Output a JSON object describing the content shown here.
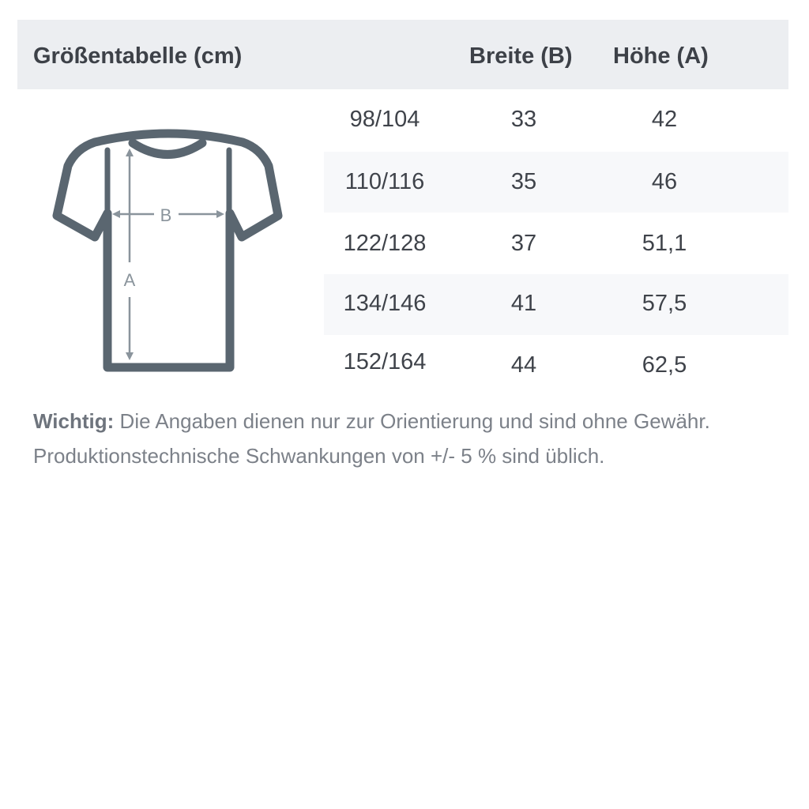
{
  "header": {
    "title": "Größentabelle (cm)",
    "col_width": "Breite (B)",
    "col_height": "Höhe (A)"
  },
  "rows": [
    {
      "size": "98/104",
      "width": "33",
      "height": "42"
    },
    {
      "size": "110/116",
      "width": "35",
      "height": "46"
    },
    {
      "size": "122/128",
      "width": "37",
      "height": "51,1"
    },
    {
      "size": "134/146",
      "width": "41",
      "height": "57,5"
    },
    {
      "size": "152/164",
      "width": "44",
      "height": "62,5"
    }
  ],
  "diagram": {
    "label_width": "B",
    "label_height": "A",
    "icon": "tshirt-measurement-icon"
  },
  "note": {
    "label": "Wichtig:",
    "line1": " Die Angaben dienen nur zur Orientierung und sind ohne Gewähr.",
    "line2": "Produktionstechnische Schwankungen von +/- 5 % sind üblich."
  },
  "colors": {
    "header_bg": "#eceef1",
    "shirt": "#5a6670",
    "arrows": "#8a949c",
    "stripe": "#f7f8fa"
  }
}
